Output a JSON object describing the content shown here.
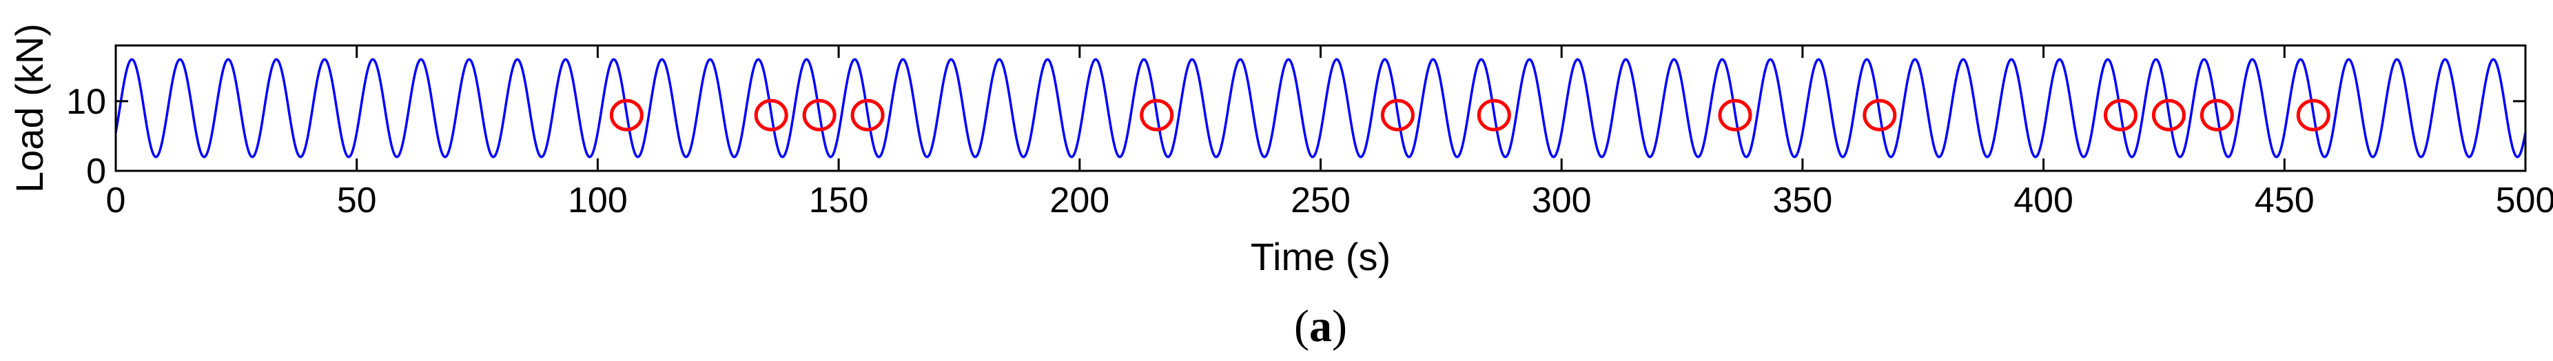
{
  "chart_data": {
    "type": "line",
    "xlabel": "Time (s)",
    "ylabel": "Load (kN)",
    "xlim": [
      0,
      500
    ],
    "ylim": [
      0,
      18
    ],
    "x_ticks": [
      0,
      50,
      100,
      150,
      200,
      250,
      300,
      350,
      400,
      450,
      500
    ],
    "y_ticks": [
      0,
      10
    ],
    "grid": false,
    "series": [
      {
        "kind": "sine-wave",
        "color": "#0000ff",
        "mean": 9,
        "amplitude": 7,
        "period": 10,
        "x_start": 0,
        "x_end": 500,
        "y_at_start": 5.5
      }
    ],
    "markers": {
      "color": "#ff0000",
      "shape": "open-circle",
      "y": 8,
      "x": [
        106,
        136,
        146,
        156,
        216,
        266,
        286,
        336,
        366,
        416,
        426,
        436,
        456
      ]
    }
  },
  "caption": {
    "open": "(",
    "letter": "a",
    "close": ")"
  }
}
